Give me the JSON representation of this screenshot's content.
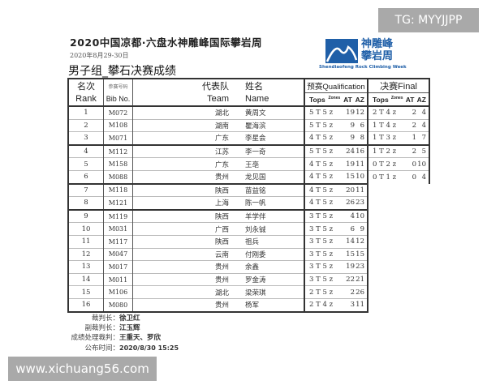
{
  "header": {
    "title": "2020中国凉都·六盘水神雕峰国际攀岩周",
    "date": "2020年8月29-30日",
    "subtitle": "男子组_攀石决赛成绩",
    "logo_cn_1": "神雕峰",
    "logo_cn_2": "攀岩周",
    "logo_en": "Shendiaofeng Rock Climbing Week"
  },
  "table": {
    "headers": {
      "rank_cn": "名次",
      "rank_en": "Rank",
      "bib_cn": "参赛号码",
      "bib_en": "Bib No.",
      "team_cn": "代表队",
      "team_en": "Team",
      "name_cn": "姓名",
      "name_en": "Name",
      "qual": "预赛Qualification",
      "final": "决赛Final",
      "tops": "Tops",
      "zones": "Zones",
      "at": "AT",
      "az": "AZ"
    },
    "rows": [
      {
        "rank": "1",
        "bib": "M072",
        "team": "湖北",
        "name": "黄周文",
        "q": "5 T 5 z",
        "q_at": "19",
        "q_az": "12",
        "f": "2 T 4 z",
        "f_at": "2",
        "f_az": "4"
      },
      {
        "rank": "2",
        "bib": "M108",
        "team": "湖南",
        "name": "瞿海滨",
        "q": "5 T 5 z",
        "q_at": "9",
        "q_az": "6",
        "f": "1 T 4 z",
        "f_at": "2",
        "f_az": "4"
      },
      {
        "rank": "3",
        "bib": "M071",
        "team": "广东",
        "name": "李星会",
        "q": "4 T 5 z",
        "q_at": "9",
        "q_az": "8",
        "f": "1 T 3 z",
        "f_at": "1",
        "f_az": "7"
      },
      {
        "rank": "4",
        "bib": "M112",
        "team": "江苏",
        "name": "李一奇",
        "q": "5 T 5 z",
        "q_at": "24",
        "q_az": "16",
        "f": "1 T 2 z",
        "f_at": "2",
        "f_az": "5"
      },
      {
        "rank": "5",
        "bib": "M158",
        "team": "广东",
        "name": "王亳",
        "q": "4 T 5 z",
        "q_at": "19",
        "q_az": "11",
        "f": "0 T 2 z",
        "f_at": "0",
        "f_az": "10"
      },
      {
        "rank": "6",
        "bib": "M088",
        "team": "贵州",
        "name": "龙见国",
        "q": "4 T 5 z",
        "q_at": "15",
        "q_az": "10",
        "f": "0 T 1 z",
        "f_at": "0",
        "f_az": "4"
      },
      {
        "rank": "7",
        "bib": "M118",
        "team": "陕西",
        "name": "苗益铭",
        "q": "4 T 5 z",
        "q_at": "20",
        "q_az": "11"
      },
      {
        "rank": "8",
        "bib": "M121",
        "team": "上海",
        "name": "陈一帆",
        "q": "4 T 5 z",
        "q_at": "26",
        "q_az": "23"
      },
      {
        "rank": "9",
        "bib": "M119",
        "team": "陕西",
        "name": "羊学伴",
        "q": "3 T 5 z",
        "q_at": "4",
        "q_az": "10"
      },
      {
        "rank": "10",
        "bib": "M031",
        "team": "广西",
        "name": "刘永铖",
        "q": "3 T 5 z",
        "q_at": "6",
        "q_az": "9"
      },
      {
        "rank": "11",
        "bib": "M117",
        "team": "陕西",
        "name": "祖兵",
        "q": "3 T 5 z",
        "q_at": "14",
        "q_az": "12"
      },
      {
        "rank": "12",
        "bib": "M047",
        "team": "云南",
        "name": "付刚委",
        "q": "3 T 5 z",
        "q_at": "15",
        "q_az": "15"
      },
      {
        "rank": "13",
        "bib": "M017",
        "team": "贵州",
        "name": "余鑫",
        "q": "3 T 5 z",
        "q_at": "19",
        "q_az": "23"
      },
      {
        "rank": "14",
        "bib": "M011",
        "team": "贵州",
        "name": "罗金涛",
        "q": "3 T 5 z",
        "q_at": "22",
        "q_az": "21"
      },
      {
        "rank": "15",
        "bib": "M106",
        "team": "湖北",
        "name": "梁荣琪",
        "q": "2 T 5 z",
        "q_at": "2",
        "q_az": "26"
      },
      {
        "rank": "16",
        "bib": "M080",
        "team": "贵州",
        "name": "杨军",
        "q": "2 T 4 z",
        "q_at": "3",
        "q_az": "11"
      }
    ]
  },
  "footer": [
    {
      "label": "裁判长：",
      "value": "徐卫红"
    },
    {
      "label": "副裁判长：",
      "value": "江玉辉"
    },
    {
      "label": "成绩处理裁判：",
      "value": "王重天、罗欣"
    },
    {
      "label": "公布时间：",
      "value": "2020/8/30 15:25"
    }
  ],
  "watermarks": {
    "top": "TG: MYYJJPP",
    "bottom": "www.xichuang56.com"
  },
  "colors": {
    "logo_blue": "#1f5fa8",
    "watermark_bg": "#a9a9a9"
  }
}
